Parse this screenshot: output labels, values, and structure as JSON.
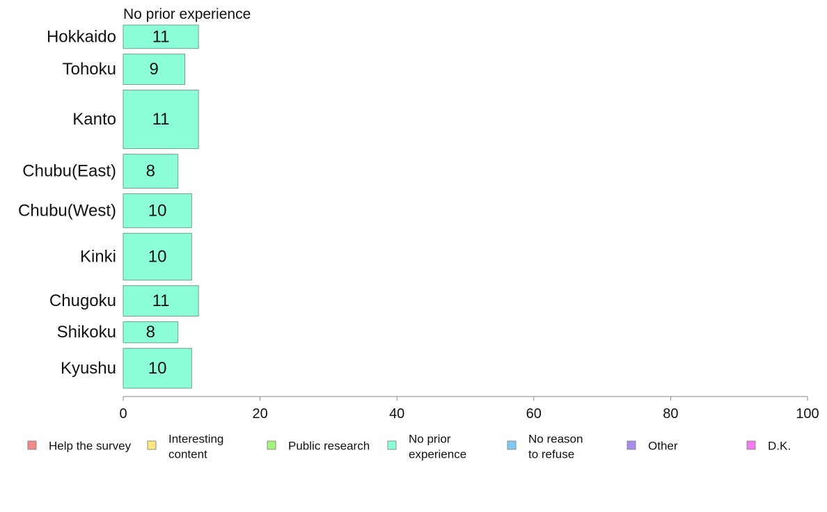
{
  "chart_data": {
    "type": "bar",
    "orientation": "horizontal",
    "panel_title": "No prior experience",
    "categories": [
      "Hokkaido",
      "Tohoku",
      "Kanto",
      "Chubu(East)",
      "Chubu(West)",
      "Kinki",
      "Chugoku",
      "Shikoku",
      "Kyushu"
    ],
    "relative_weights": [
      1.0,
      1.3,
      2.5,
      1.45,
      1.45,
      2.0,
      1.3,
      0.9,
      1.7
    ],
    "series": [
      {
        "name": "No prior experience",
        "values": [
          11,
          9,
          11,
          8,
          10,
          10,
          11,
          8,
          10
        ],
        "color": "#8cffd9"
      }
    ],
    "data_labels": [
      "11",
      "9",
      "11",
      "8",
      "10",
      "10",
      "11",
      "8",
      "10"
    ],
    "xlim": [
      0,
      100
    ],
    "xticks": [
      0,
      20,
      40,
      60,
      80,
      100
    ],
    "xtick_labels": [
      "0",
      "20",
      "40",
      "60",
      "80",
      "100"
    ],
    "grid": false,
    "legend_placement": "bottom",
    "legend": [
      {
        "lines": [
          "Help the survey"
        ],
        "color": "#f08a8a"
      },
      {
        "lines": [
          "Interesting",
          "content"
        ],
        "color": "#ffe680"
      },
      {
        "lines": [
          "Public research"
        ],
        "color": "#a6f07e"
      },
      {
        "lines": [
          "No prior",
          "experience"
        ],
        "color": "#8cffd9"
      },
      {
        "lines": [
          "No reason",
          "to refuse"
        ],
        "color": "#80c8f5"
      },
      {
        "lines": [
          "Other"
        ],
        "color": "#a98cf0"
      },
      {
        "lines": [
          "D.K."
        ],
        "color": "#f57af0"
      }
    ]
  }
}
